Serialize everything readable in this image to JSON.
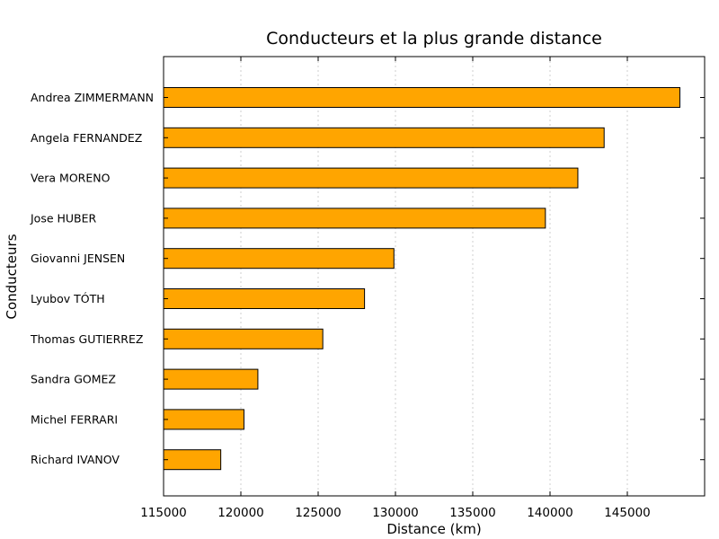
{
  "chart_data": {
    "type": "bar",
    "orientation": "horizontal",
    "title": "Conducteurs et la plus grande distance",
    "xlabel": "Distance (km)",
    "ylabel": "Conducteurs",
    "categories": [
      "Andrea ZIMMERMANN",
      "Angela FERNANDEZ",
      "Vera MORENO",
      "Jose HUBER",
      "Giovanni JENSEN",
      "Lyubov TÓTH",
      "Thomas GUTIERREZ",
      "Sandra GOMEZ",
      "Michel FERRARI",
      "Richard IVANOV"
    ],
    "values": [
      148400,
      143500,
      141800,
      139700,
      129900,
      128000,
      125300,
      121100,
      120200,
      118700
    ],
    "xlim": [
      115000,
      150000
    ],
    "xticks": [
      115000,
      120000,
      125000,
      130000,
      135000,
      140000,
      145000
    ],
    "xtick_labels": [
      "115000",
      "120000",
      "125000",
      "130000",
      "135000",
      "140000",
      "145000"
    ],
    "grid": "x",
    "bar_color": "#ffa500",
    "bar_edge_color": "#000000"
  }
}
